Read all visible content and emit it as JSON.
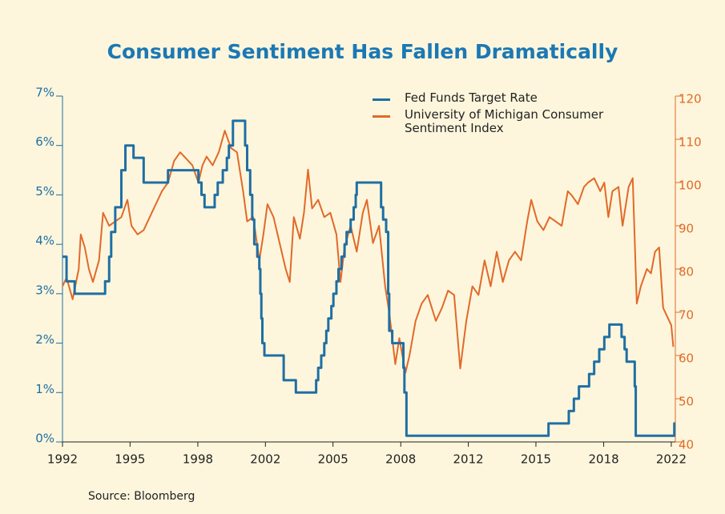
{
  "chart_data": {
    "type": "line",
    "title": "Consumer Sentiment Has Fallen Dramatically",
    "source": "Source: Bloomberg",
    "xlim": [
      1992,
      2022.2
    ],
    "xticks": [
      1992,
      {
        "value": 1995.33,
        "label": "1995"
      },
      {
        "value": 1998.67,
        "label": "1998"
      },
      2002,
      {
        "value": 2005.33,
        "label": "2005"
      },
      {
        "value": 2008.67,
        "label": "2008"
      },
      2012,
      {
        "value": 2015.33,
        "label": "2015"
      },
      {
        "value": 2018.67,
        "label": "2018"
      },
      2022
    ],
    "ylim": [
      0,
      7
    ],
    "yticks": [
      {
        "value": 0,
        "label": "0%"
      },
      {
        "value": 1,
        "label": "1%"
      },
      {
        "value": 2,
        "label": "2%"
      },
      {
        "value": 3,
        "label": "3%"
      },
      {
        "value": 4,
        "label": "4%"
      },
      {
        "value": 5,
        "label": "5%"
      },
      {
        "value": 6,
        "label": "6%"
      },
      {
        "value": 7,
        "label": "7%"
      }
    ],
    "y2lim": [
      40,
      120
    ],
    "y2ticks": [
      40,
      50,
      60,
      70,
      80,
      90,
      100,
      110,
      120
    ],
    "series": [
      {
        "name": "Fed Funds Target Rate",
        "color": "#1f6fa3",
        "step": true,
        "x": [
          1992.0,
          1992.2,
          1992.6,
          1994.1,
          1994.3,
          1994.4,
          1994.6,
          1994.9,
          1995.1,
          1995.5,
          1996.0,
          1997.2,
          1998.7,
          1998.85,
          1999.0,
          1999.5,
          1999.65,
          1999.9,
          2000.1,
          2000.2,
          2000.4,
          2001.0,
          2001.1,
          2001.25,
          2001.35,
          2001.45,
          2001.6,
          2001.7,
          2001.75,
          2001.8,
          2001.85,
          2001.95,
          2002.9,
          2003.5,
          2004.5,
          2004.6,
          2004.75,
          2004.9,
          2005.0,
          2005.1,
          2005.25,
          2005.35,
          2005.5,
          2005.6,
          2005.75,
          2005.9,
          2006.0,
          2006.2,
          2006.35,
          2006.45,
          2006.5,
          2007.7,
          2007.8,
          2007.95,
          2008.05,
          2008.1,
          2008.25,
          2008.8,
          2008.85,
          2008.95,
          2015.95,
          2016.95,
          2017.2,
          2017.45,
          2017.95,
          2018.2,
          2018.45,
          2018.7,
          2018.95,
          2019.55,
          2019.7,
          2019.8,
          2020.2,
          2020.25,
          2022.15,
          2022.2
        ],
        "values": [
          3.75,
          3.25,
          3.0,
          3.25,
          3.75,
          4.25,
          4.75,
          5.5,
          6.0,
          5.75,
          5.25,
          5.5,
          5.25,
          5.0,
          4.75,
          5.0,
          5.25,
          5.5,
          5.75,
          6.0,
          6.5,
          6.0,
          5.5,
          5.0,
          4.5,
          4.0,
          3.75,
          3.5,
          3.0,
          2.5,
          2.0,
          1.75,
          1.25,
          1.0,
          1.25,
          1.5,
          1.75,
          2.0,
          2.25,
          2.5,
          2.75,
          3.0,
          3.25,
          3.5,
          3.75,
          4.0,
          4.25,
          4.5,
          4.75,
          5.0,
          5.25,
          4.75,
          4.5,
          4.25,
          3.0,
          2.25,
          2.0,
          1.5,
          1.0,
          0.125,
          0.375,
          0.625,
          0.875,
          1.125,
          1.375,
          1.625,
          1.875,
          2.125,
          2.375,
          2.125,
          1.875,
          1.625,
          1.125,
          0.125,
          0.375,
          0.375
        ]
      },
      {
        "name": "University of Michigan Consumer Sentiment Index",
        "color": "#e2692a",
        "axis": "y2",
        "x": [
          1992.0,
          1992.2,
          1992.5,
          1992.8,
          1992.9,
          1993.1,
          1993.3,
          1993.5,
          1993.8,
          1994.0,
          1994.3,
          1994.6,
          1994.9,
          1995.2,
          1995.4,
          1995.7,
          1996.0,
          1996.3,
          1996.6,
          1996.9,
          1997.2,
          1997.5,
          1997.8,
          1998.0,
          1998.4,
          1998.7,
          1998.9,
          1999.1,
          1999.4,
          1999.7,
          2000.0,
          2000.3,
          2000.6,
          2000.9,
          2001.1,
          2001.4,
          2001.7,
          2001.9,
          2002.1,
          2002.4,
          2002.7,
          2003.0,
          2003.2,
          2003.4,
          2003.7,
          2003.9,
          2004.1,
          2004.3,
          2004.6,
          2004.9,
          2005.2,
          2005.5,
          2005.7,
          2005.9,
          2006.2,
          2006.5,
          2006.8,
          2007.0,
          2007.3,
          2007.6,
          2007.9,
          2008.1,
          2008.4,
          2008.6,
          2008.9,
          2009.1,
          2009.4,
          2009.7,
          2010.0,
          2010.4,
          2010.7,
          2011.0,
          2011.3,
          2011.6,
          2011.9,
          2012.2,
          2012.5,
          2012.8,
          2013.1,
          2013.4,
          2013.7,
          2014.0,
          2014.3,
          2014.6,
          2014.9,
          2015.1,
          2015.4,
          2015.7,
          2016.0,
          2016.3,
          2016.6,
          2016.9,
          2017.1,
          2017.4,
          2017.7,
          2017.9,
          2018.2,
          2018.5,
          2018.7,
          2018.9,
          2019.1,
          2019.4,
          2019.6,
          2019.9,
          2020.1,
          2020.3,
          2020.5,
          2020.8,
          2021.0,
          2021.2,
          2021.4,
          2021.6,
          2021.8,
          2022.0,
          2022.1
        ],
        "values": [
          76,
          78,
          73,
          80,
          88,
          85,
          80,
          77,
          82,
          93,
          90,
          91,
          92,
          96,
          90,
          88,
          89,
          92,
          95,
          98,
          100,
          105,
          107,
          106,
          104,
          100,
          104,
          106,
          104,
          107,
          112,
          108,
          107,
          98,
          91,
          92,
          82,
          88,
          95,
          92,
          86,
          80,
          77,
          92,
          87,
          93,
          103,
          94,
          96,
          92,
          93,
          88,
          77,
          85,
          90,
          84,
          93,
          96,
          86,
          90,
          76,
          70,
          58,
          64,
          56,
          60,
          68,
          72,
          74,
          68,
          71,
          75,
          74,
          57,
          68,
          76,
          74,
          82,
          76,
          84,
          77,
          82,
          84,
          82,
          91,
          96,
          91,
          89,
          92,
          91,
          90,
          98,
          97,
          95,
          99,
          100,
          101,
          98,
          100,
          92,
          98,
          99,
          90,
          99,
          101,
          72,
          76,
          80,
          79,
          84,
          85,
          71,
          69,
          67,
          62
        ]
      }
    ]
  }
}
